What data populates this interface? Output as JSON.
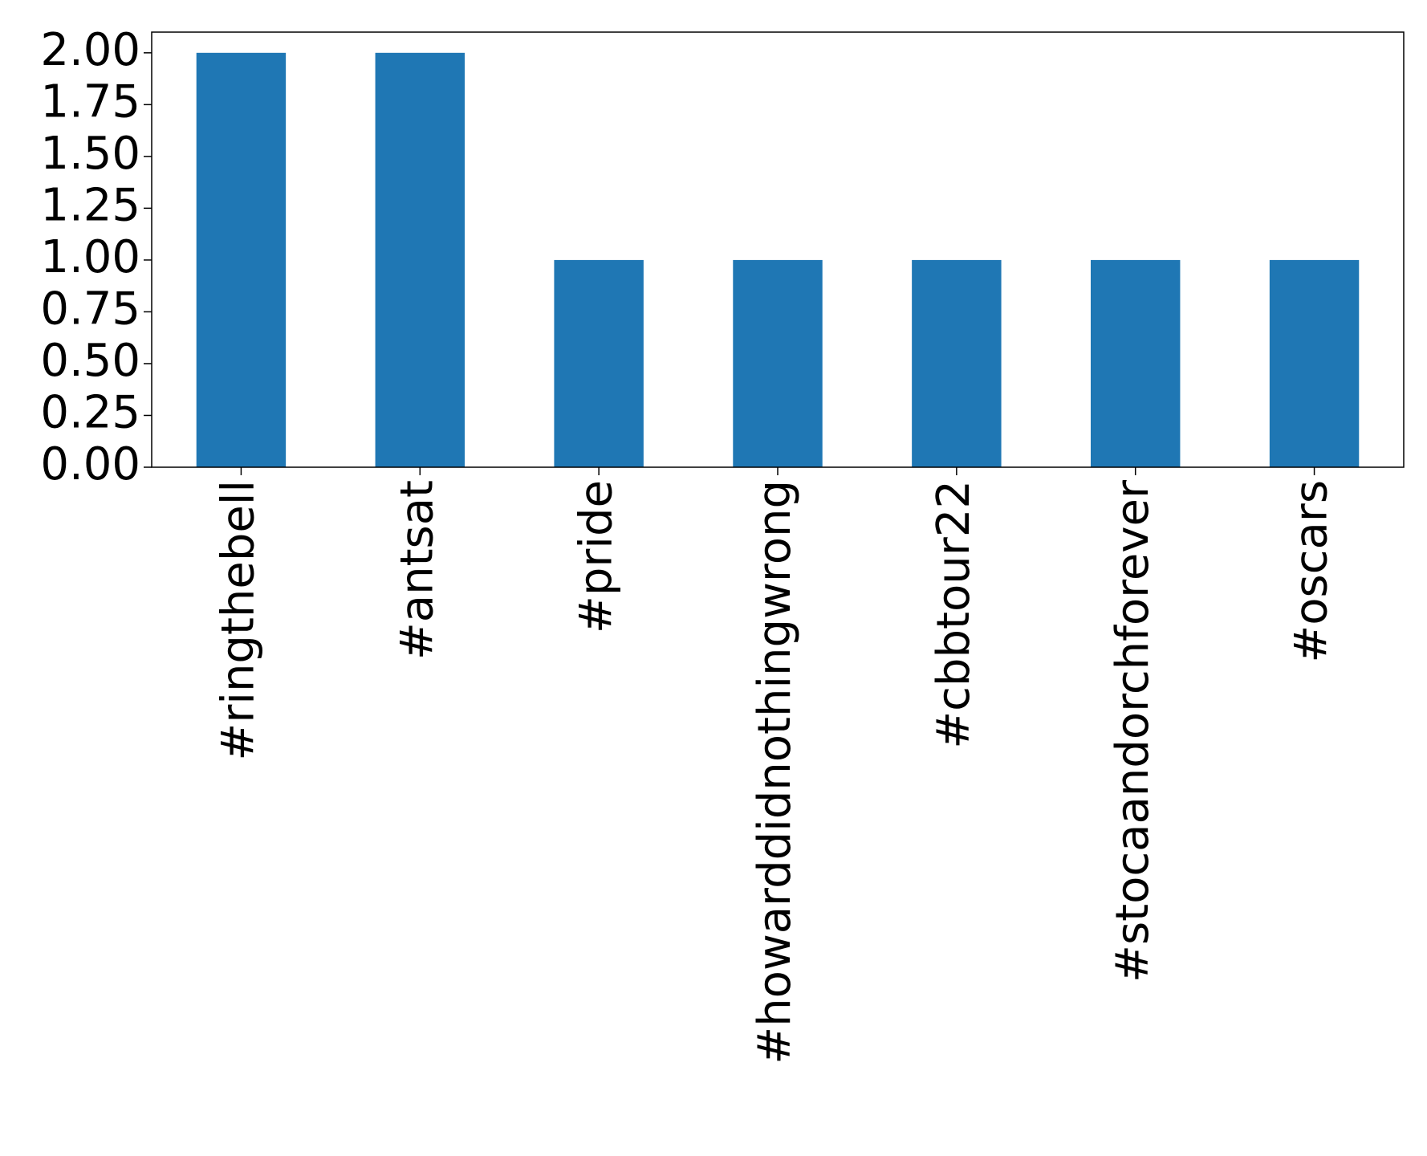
{
  "chart_data": {
    "type": "bar",
    "categories": [
      "#ringthebell",
      "#antsat",
      "#pride",
      "#howarddidnothingwrong",
      "#cbbtour22",
      "#stocaandorchforever",
      "#oscars"
    ],
    "values": [
      2,
      2,
      1,
      1,
      1,
      1,
      1
    ],
    "color": "#1f77b4",
    "ylim": [
      0,
      2.1
    ],
    "yticks": [
      {
        "value": 0,
        "label": "0.00"
      },
      {
        "value": 0.25,
        "label": "0.25"
      },
      {
        "value": 0.5,
        "label": "0.50"
      },
      {
        "value": 0.75,
        "label": "0.75"
      },
      {
        "value": 1,
        "label": "1.00"
      },
      {
        "value": 1.25,
        "label": "1.25"
      },
      {
        "value": 1.5,
        "label": "1.50"
      },
      {
        "value": 1.75,
        "label": "1.75"
      },
      {
        "value": 2,
        "label": "2.00"
      }
    ],
    "grid": false
  }
}
